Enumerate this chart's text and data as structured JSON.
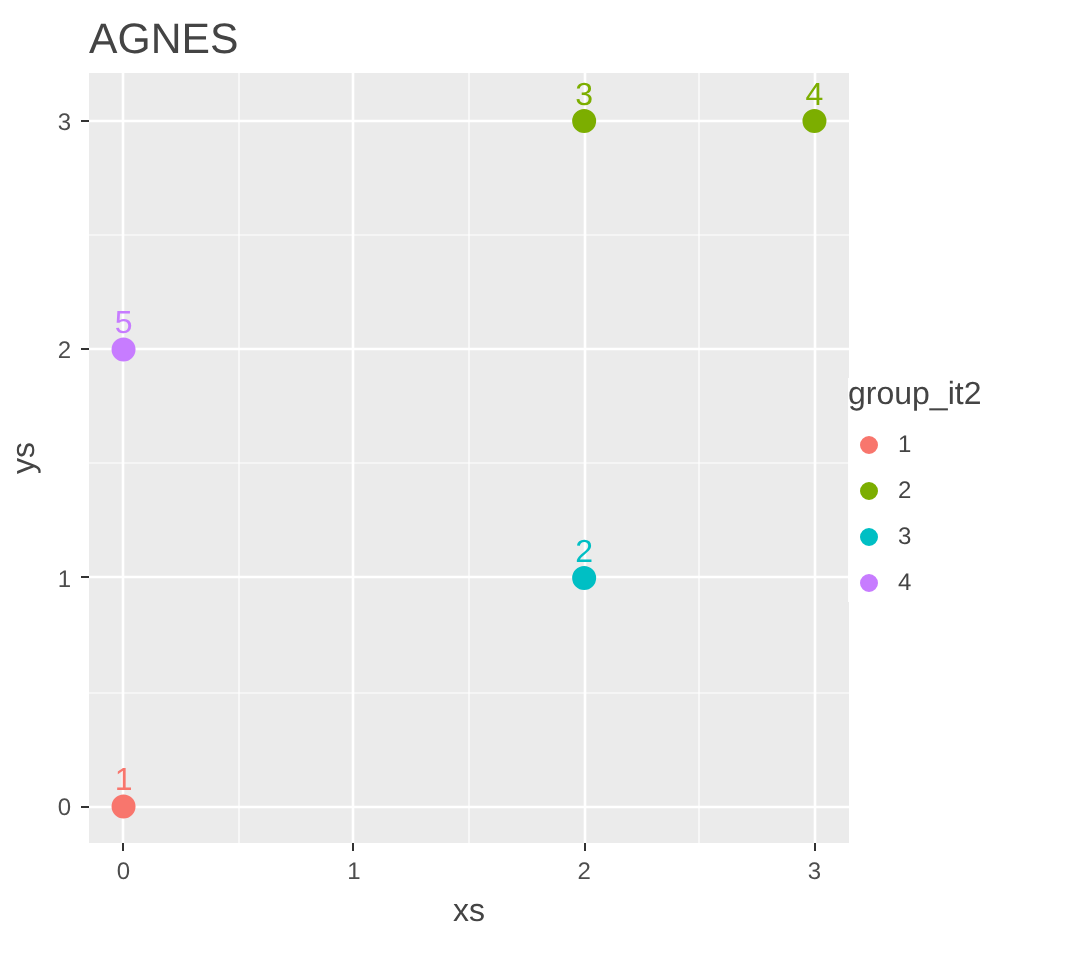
{
  "chart_data": {
    "type": "scatter",
    "title": "AGNES",
    "xlabel": "xs",
    "ylabel": "ys",
    "legend_title": "group_it2",
    "series": [
      {
        "name": "1",
        "color": "#f8766d",
        "x": [
          0
        ],
        "values": [
          0
        ]
      },
      {
        "name": "2",
        "color": "#7cae00",
        "x": [
          2,
          3
        ],
        "values": [
          3,
          3
        ]
      },
      {
        "name": "3",
        "color": "#00bfc4",
        "x": [
          2
        ],
        "values": [
          1
        ]
      },
      {
        "name": "4",
        "color": "#c77cff",
        "x": [
          0
        ],
        "values": [
          2
        ]
      }
    ],
    "annotations": [
      {
        "text": "1",
        "x": 0,
        "y": 0
      },
      {
        "text": "2",
        "x": 2,
        "y": 1
      },
      {
        "text": "3",
        "x": 2,
        "y": 3
      },
      {
        "text": "4",
        "x": 3,
        "y": 3
      },
      {
        "text": "5",
        "x": 0,
        "y": 2
      }
    ],
    "xlim": [
      -0.15,
      3.15
    ],
    "ylim": [
      -0.16,
      3.21
    ],
    "xticks": [
      0,
      1,
      2,
      3
    ],
    "yticks": [
      0,
      1,
      2,
      3
    ],
    "grid": true,
    "legend": "right",
    "marker": "circle"
  }
}
